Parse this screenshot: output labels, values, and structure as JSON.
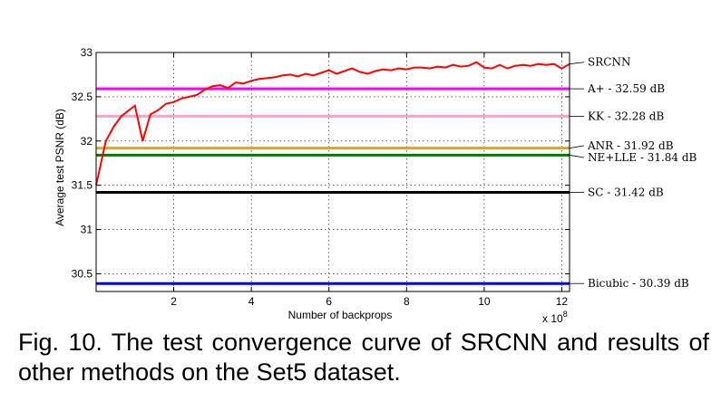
{
  "chart_data": {
    "type": "line",
    "xlabel": "Number of backprops",
    "ylabel": "Average test PSNR (dB)",
    "x_multiplier_label": "x 10",
    "x_multiplier_exp": "8",
    "xlim": [
      0,
      12.2
    ],
    "ylim": [
      30.3,
      33.0
    ],
    "xticks": [
      "2",
      "4",
      "6",
      "8",
      "10",
      "12"
    ],
    "yticks": [
      "30.5",
      "31",
      "31.5",
      "32",
      "32.5",
      "33"
    ],
    "grid": true,
    "curve": {
      "name": "SRCNN",
      "label": "SRCNN",
      "color": "#ff0000",
      "x": [
        0.0,
        0.25,
        0.45,
        0.65,
        0.85,
        1.0,
        1.2,
        1.4,
        1.6,
        1.8,
        2.0,
        2.2,
        2.4,
        2.6,
        2.8,
        3.0,
        3.2,
        3.4,
        3.6,
        3.8,
        4.0,
        4.2,
        4.4,
        4.6,
        4.8,
        5.0,
        5.2,
        5.4,
        5.6,
        5.8,
        6.0,
        6.2,
        6.4,
        6.6,
        6.8,
        7.0,
        7.2,
        7.4,
        7.6,
        7.8,
        8.0,
        8.2,
        8.4,
        8.6,
        8.8,
        9.0,
        9.2,
        9.4,
        9.6,
        9.8,
        10.0,
        10.2,
        10.4,
        10.6,
        10.8,
        11.0,
        11.2,
        11.4,
        11.6,
        11.8,
        12.0,
        12.2
      ],
      "y": [
        31.5,
        32.0,
        32.16,
        32.28,
        32.35,
        32.4,
        32.0,
        32.3,
        32.35,
        32.42,
        32.44,
        32.48,
        32.5,
        32.52,
        32.58,
        32.62,
        32.63,
        32.6,
        32.66,
        32.65,
        32.68,
        32.7,
        32.71,
        32.72,
        32.74,
        32.75,
        32.73,
        32.76,
        32.74,
        32.77,
        32.8,
        32.76,
        32.79,
        32.82,
        32.78,
        32.76,
        32.79,
        32.81,
        32.8,
        32.82,
        32.81,
        32.83,
        32.83,
        32.82,
        32.84,
        32.83,
        32.86,
        32.84,
        32.85,
        32.89,
        32.83,
        32.82,
        32.86,
        32.82,
        32.85,
        32.86,
        32.85,
        32.87,
        32.86,
        32.87,
        32.82,
        32.87
      ]
    },
    "baselines": [
      {
        "label": "A+ - 32.59 dB",
        "value": 32.59,
        "color": "#ff00ff"
      },
      {
        "label": "KK - 32.28 dB",
        "value": 32.28,
        "color": "#ffa0c8"
      },
      {
        "label": "ANR - 31.92 dB",
        "value": 31.92,
        "color": "#d4a530"
      },
      {
        "label": "NE+LLE - 31.84 dB",
        "value": 31.84,
        "color": "#007a00"
      },
      {
        "label": "SC - 31.42 dB",
        "value": 31.42,
        "color": "#000000"
      },
      {
        "label": "Bicubic - 30.39 dB",
        "value": 30.39,
        "color": "#0000ee"
      }
    ]
  },
  "caption": {
    "text": "Fig. 10.  The test convergence curve of SRCNN and results of other methods on the Set5 dataset."
  }
}
